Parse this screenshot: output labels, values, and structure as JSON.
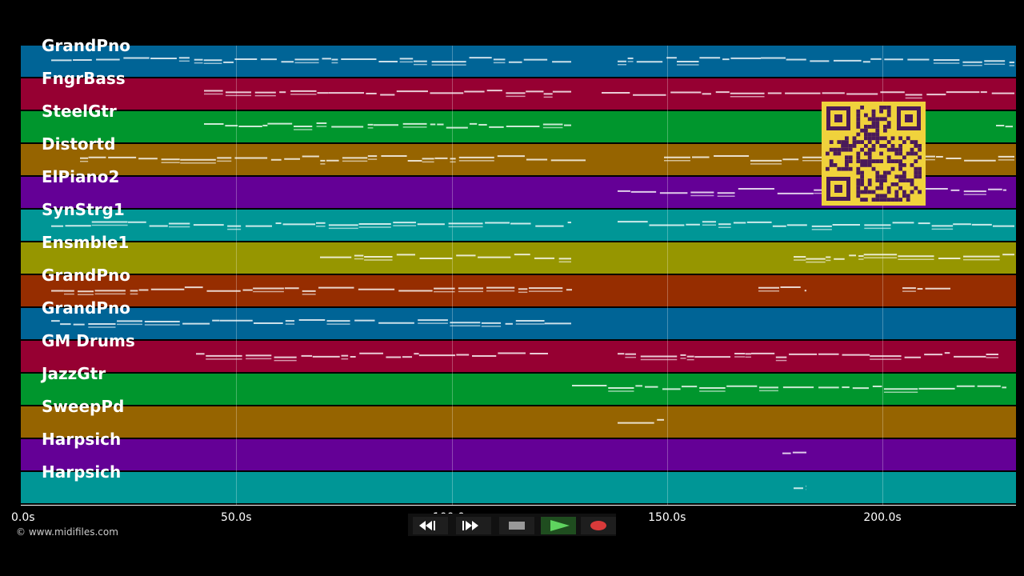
{
  "tracks": [
    {
      "label": "GrandPno",
      "color": "#006496"
    },
    {
      "label": "FngrBass",
      "color": "#960032"
    },
    {
      "label": "SteelGtr",
      "color": "#00962d"
    },
    {
      "label": "Distortd",
      "color": "#966400"
    },
    {
      "label": "ElPiano2",
      "color": "#640096"
    },
    {
      "label": "SynStrg1",
      "color": "#009696"
    },
    {
      "label": "Ensmble1",
      "color": "#969600"
    },
    {
      "label": "GrandPno",
      "color": "#962d00"
    },
    {
      "label": "GrandPno",
      "color": "#006496"
    },
    {
      "label": "GM Drums",
      "color": "#960032"
    },
    {
      "label": "JazzGtr",
      "color": "#00962d"
    },
    {
      "label": "SweepPd",
      "color": "#966400"
    },
    {
      "label": "Harpsich",
      "color": "#640096"
    },
    {
      "label": "Harpsich",
      "color": "#009696"
    }
  ],
  "axis": {
    "ticks": [
      "0.0s",
      "50.0s",
      "100.0s",
      "150.0s",
      "200.0s"
    ]
  },
  "copyright": "© www.midifiles.com",
  "controls": {
    "rewind": "rewind-icon",
    "fast_forward": "fast-forward-icon",
    "stop": "stop-icon",
    "play": "play-icon",
    "record": "record-icon"
  },
  "qr": "qr-code"
}
